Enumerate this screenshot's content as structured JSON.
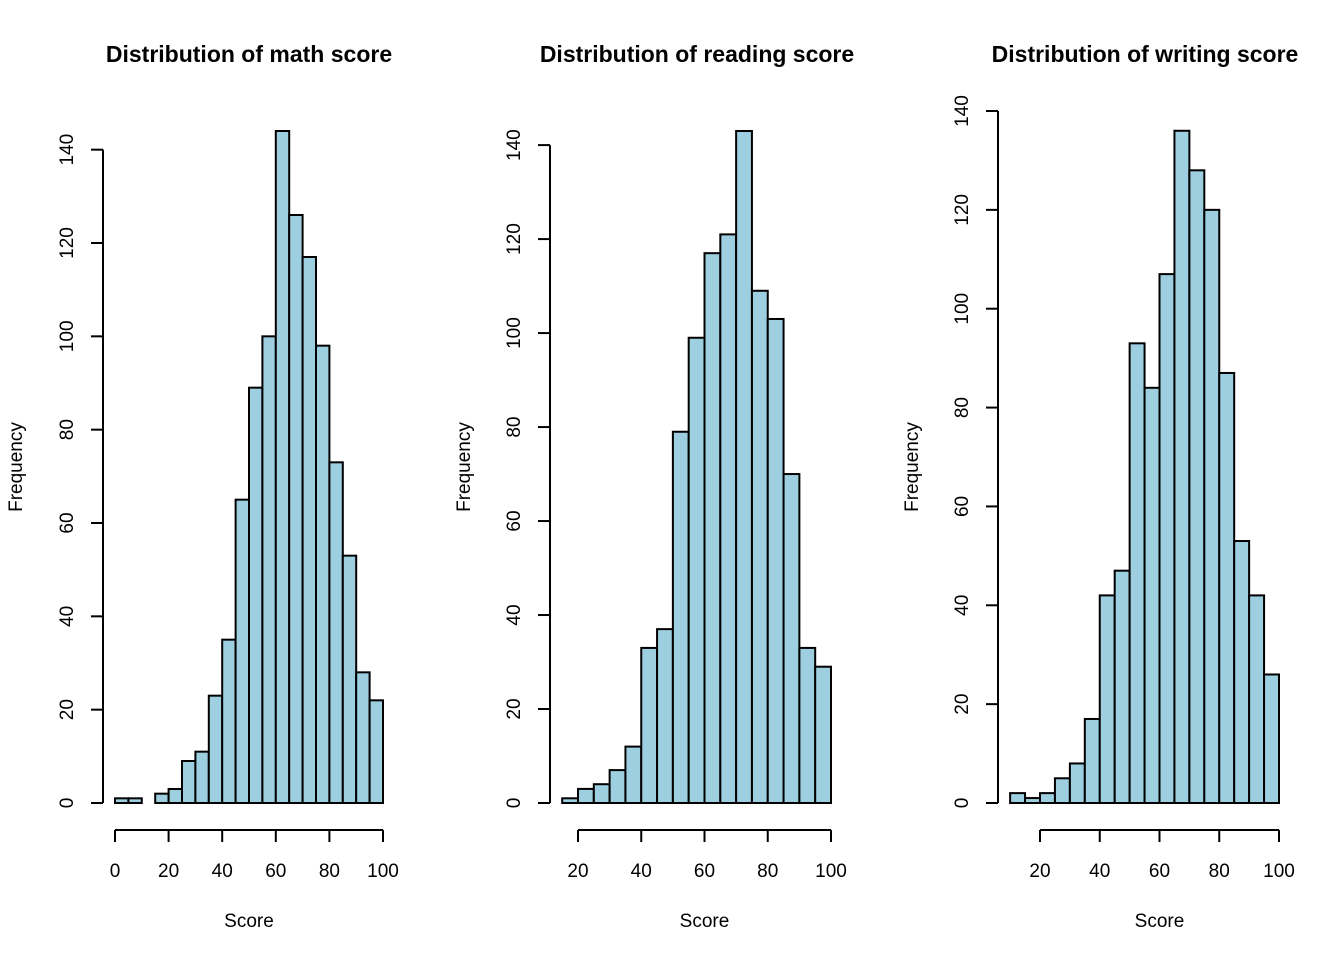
{
  "chart_data": [
    {
      "type": "bar",
      "title": "Distribution of math score",
      "xlabel": "Score",
      "ylabel": "Frequency",
      "bin_width": 5,
      "bin_start": 0,
      "values": [
        1,
        1,
        0,
        2,
        3,
        9,
        11,
        23,
        35,
        65,
        89,
        100,
        144,
        126,
        117,
        98,
        73,
        53,
        28,
        22
      ],
      "x_ticks": [
        0,
        20,
        40,
        60,
        80,
        100
      ],
      "y_ticks": [
        0,
        20,
        40,
        60,
        80,
        100,
        120,
        140
      ],
      "xlim": [
        0,
        100
      ],
      "ylim": [
        0,
        144
      ],
      "color": "#9ecfe0",
      "grid": false
    },
    {
      "type": "bar",
      "title": "Distribution of reading score",
      "xlabel": "Score",
      "ylabel": "Frequency",
      "bin_width": 5,
      "bin_start": 15,
      "values": [
        1,
        3,
        4,
        7,
        12,
        33,
        37,
        79,
        99,
        117,
        121,
        143,
        109,
        103,
        70,
        33,
        29
      ],
      "x_ticks": [
        20,
        40,
        60,
        80,
        100
      ],
      "y_ticks": [
        0,
        20,
        40,
        60,
        80,
        100,
        120,
        140
      ],
      "xlim": [
        20,
        100
      ],
      "ylim": [
        0,
        143
      ],
      "color": "#9ecfe0",
      "grid": false
    },
    {
      "type": "bar",
      "title": "Distribution of writing score",
      "xlabel": "Score",
      "ylabel": "Frequency",
      "bin_width": 5,
      "bin_start": 10,
      "values": [
        2,
        1,
        2,
        5,
        8,
        17,
        42,
        47,
        93,
        84,
        107,
        136,
        128,
        120,
        87,
        53,
        42,
        26
      ],
      "x_ticks": [
        20,
        40,
        60,
        80,
        100
      ],
      "y_ticks": [
        0,
        20,
        40,
        60,
        80,
        100,
        120,
        140
      ],
      "xlim": [
        20,
        100
      ],
      "ylim": [
        0,
        140
      ],
      "color": "#9ecfe0",
      "grid": false
    }
  ]
}
